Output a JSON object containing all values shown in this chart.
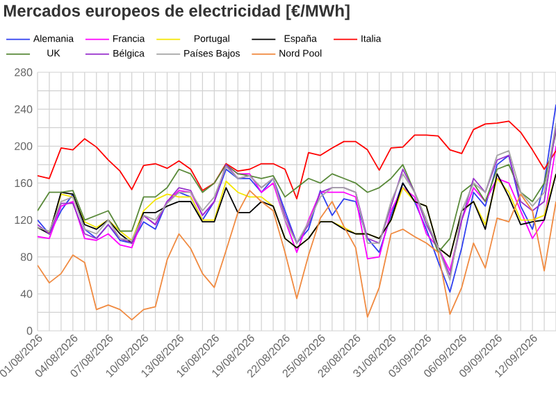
{
  "chart_data": {
    "type": "line",
    "title": "Mercados europeos de electricidad [€/MWh]",
    "categories": [
      "01/08/2026",
      null,
      null,
      "04/08/2026",
      null,
      null,
      "07/08/2026",
      null,
      null,
      "10/08/2026",
      null,
      null,
      "13/08/2026",
      null,
      null,
      "16/08/2026",
      null,
      null,
      "19/08/2026",
      null,
      null,
      "22/08/2026",
      null,
      null,
      "25/08/2026",
      null,
      null,
      "28/08/2026",
      null,
      null,
      "31/08/2026",
      null,
      null,
      "03/09/2026",
      null,
      null,
      "06/09/2026",
      null,
      null,
      "09/09/2026",
      null,
      null,
      "12/09/2026",
      null,
      null
    ],
    "series": [
      {
        "name": "Alemania",
        "color": "#2e3ef0",
        "values": [
          120,
          105,
          130,
          148,
          110,
          100,
          115,
          98,
          95,
          118,
          110,
          140,
          150,
          145,
          120,
          140,
          175,
          165,
          165,
          150,
          165,
          130,
          95,
          110,
          152,
          125,
          143,
          140,
          100,
          85,
          125,
          160,
          140,
          110,
          75,
          42,
          90,
          150,
          135,
          180,
          190,
          135,
          110,
          160,
          245
        ]
      },
      {
        "name": "Francia",
        "color": "#ff00ff",
        "values": [
          102,
          100,
          135,
          140,
          100,
          98,
          105,
          93,
          90,
          125,
          115,
          140,
          152,
          150,
          125,
          140,
          180,
          170,
          170,
          150,
          160,
          120,
          85,
          120,
          150,
          150,
          150,
          145,
          78,
          80,
          130,
          155,
          145,
          105,
          90,
          65,
          120,
          155,
          140,
          165,
          160,
          130,
          100,
          120,
          200
        ]
      },
      {
        "name": "Portugal",
        "color": "#f5e600",
        "values": [
          112,
          106,
          148,
          145,
          118,
          112,
          120,
          108,
          98,
          130,
          142,
          148,
          145,
          145,
          120,
          120,
          162,
          150,
          145,
          145,
          135,
          100,
          90,
          100,
          118,
          118,
          112,
          105,
          105,
          100,
          120,
          155,
          140,
          135,
          90,
          80,
          130,
          140,
          115,
          165,
          150,
          120,
          120,
          125,
          170
        ]
      },
      {
        "name": "España",
        "color": "#000000",
        "values": [
          112,
          105,
          150,
          148,
          115,
          110,
          120,
          105,
          95,
          128,
          128,
          135,
          140,
          140,
          118,
          118,
          155,
          128,
          128,
          140,
          135,
          100,
          90,
          100,
          118,
          118,
          110,
          105,
          105,
          100,
          120,
          160,
          140,
          135,
          90,
          80,
          130,
          140,
          110,
          170,
          145,
          115,
          118,
          120,
          170
        ]
      },
      {
        "name": "Italia",
        "color": "#ff0000",
        "values": [
          168,
          165,
          198,
          196,
          208,
          199,
          185,
          173,
          153,
          179,
          181,
          176,
          184,
          175,
          152,
          160,
          181,
          173,
          175,
          181,
          181,
          175,
          143,
          193,
          190,
          198,
          205,
          205,
          196,
          174,
          198,
          199,
          212,
          212,
          211,
          196,
          192,
          218,
          224,
          225,
          227,
          215,
          196,
          175,
          195
        ]
      },
      {
        "name": "UK",
        "color": "#5a8a3a",
        "values": [
          130,
          150,
          150,
          152,
          120,
          125,
          130,
          108,
          108,
          145,
          145,
          155,
          175,
          170,
          150,
          160,
          180,
          170,
          168,
          165,
          168,
          145,
          155,
          165,
          160,
          170,
          165,
          160,
          150,
          155,
          165,
          180,
          150,
          120,
          85,
          100,
          150,
          160,
          140,
          175,
          180,
          150,
          140,
          160,
          215
        ]
      },
      {
        "name": "Bélgica",
        "color": "#9933cc",
        "values": [
          115,
          105,
          138,
          138,
          105,
          100,
          115,
          100,
          95,
          125,
          115,
          140,
          155,
          152,
          125,
          140,
          180,
          165,
          168,
          155,
          165,
          125,
          95,
          115,
          150,
          155,
          155,
          150,
          100,
          95,
          135,
          175,
          150,
          115,
          90,
          60,
          120,
          165,
          150,
          185,
          190,
          140,
          130,
          140,
          220
        ]
      },
      {
        "name": "Países Bajos",
        "color": "#a6a6a6",
        "values": [
          112,
          108,
          140,
          145,
          110,
          105,
          120,
          100,
          98,
          125,
          120,
          138,
          150,
          150,
          130,
          145,
          178,
          165,
          168,
          155,
          165,
          120,
          95,
          118,
          145,
          155,
          155,
          150,
          95,
          95,
          140,
          170,
          150,
          120,
          90,
          55,
          130,
          160,
          150,
          190,
          195,
          150,
          135,
          150,
          225
        ]
      },
      {
        "name": "Nord Pool",
        "color": "#f08a40",
        "values": [
          71,
          52,
          62,
          82,
          74,
          23,
          28,
          23,
          12,
          23,
          26,
          77,
          105,
          89,
          62,
          47,
          87,
          128,
          152,
          140,
          130,
          85,
          35,
          82,
          122,
          140,
          113,
          90,
          15,
          47,
          105,
          110,
          102,
          95,
          85,
          18,
          47,
          95,
          68,
          122,
          118,
          148,
          130,
          65,
          140
        ]
      }
    ],
    "ylim": [
      0,
      280
    ],
    "yticks": [
      0,
      {
        "value": 20,
        "label": null
      },
      40,
      {
        "value": 60,
        "label": null
      },
      80,
      {
        "value": 100,
        "label": null
      },
      120,
      {
        "value": 140,
        "label": null
      },
      160,
      {
        "value": 180,
        "label": null
      },
      200,
      {
        "value": 220,
        "label": null
      },
      240,
      {
        "value": 260,
        "label": null
      },
      280
    ],
    "grid": true,
    "legend": "top",
    "marker": "none",
    "line_style": "solid"
  }
}
